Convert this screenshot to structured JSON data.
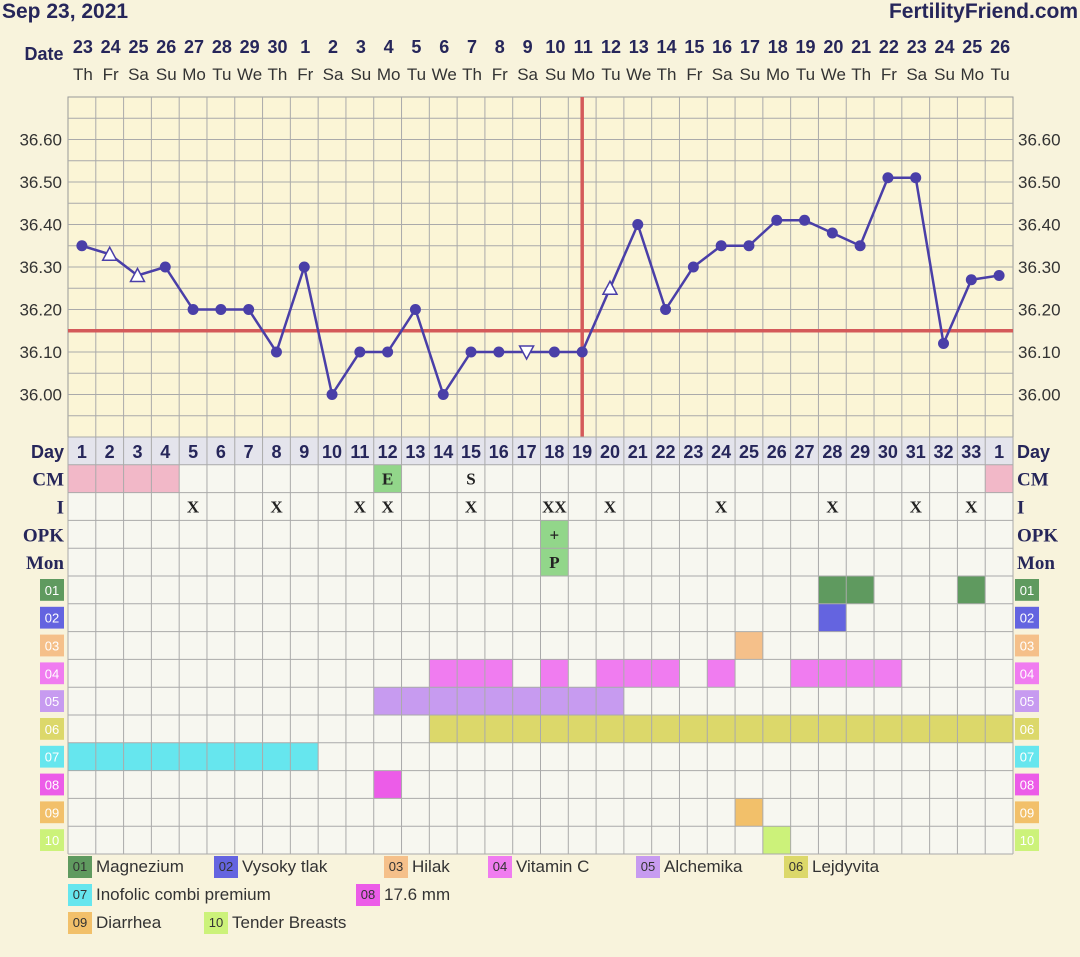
{
  "header": {
    "date": "Sep 23, 2021",
    "site": "FertilityFriend.com"
  },
  "labels": {
    "date": "Date",
    "day": "Day",
    "cm": "CM",
    "i": "I",
    "opk": "OPK",
    "mon": "Mon"
  },
  "colors": {
    "background": "#f8f3dc",
    "temp_line": "#4a3fa8",
    "coverline": "#d45a5a",
    "cm_pink": "#f2b8c8",
    "marker_green": "#92d68a"
  },
  "chart_data": {
    "type": "line",
    "title": "",
    "ylabel": "",
    "ylim": [
      35.9,
      36.7
    ],
    "yticks": [
      "36.60",
      "36.50",
      "36.40",
      "36.30",
      "36.20",
      "36.10",
      "36.00"
    ],
    "coverline": 36.15,
    "ovulation_day": 19,
    "dates": [
      "23",
      "24",
      "25",
      "26",
      "27",
      "28",
      "29",
      "30",
      "1",
      "2",
      "3",
      "4",
      "5",
      "6",
      "7",
      "8",
      "9",
      "10",
      "11",
      "12",
      "13",
      "14",
      "15",
      "16",
      "17",
      "18",
      "19",
      "20",
      "21",
      "22",
      "23",
      "24",
      "25",
      "26"
    ],
    "weekdays": [
      "Th",
      "Fr",
      "Sa",
      "Su",
      "Mo",
      "Tu",
      "We",
      "Th",
      "Fr",
      "Sa",
      "Su",
      "Mo",
      "Tu",
      "We",
      "Th",
      "Fr",
      "Sa",
      "Su",
      "Mo",
      "Tu",
      "We",
      "Th",
      "Fr",
      "Sa",
      "Su",
      "Mo",
      "Tu",
      "We",
      "Th",
      "Fr",
      "Sa",
      "Su",
      "Mo",
      "Tu"
    ],
    "cycle_days": [
      "1",
      "2",
      "3",
      "4",
      "5",
      "6",
      "7",
      "8",
      "9",
      "10",
      "11",
      "12",
      "13",
      "14",
      "15",
      "16",
      "17",
      "18",
      "19",
      "20",
      "21",
      "22",
      "23",
      "24",
      "25",
      "26",
      "27",
      "28",
      "29",
      "30",
      "31",
      "32",
      "33",
      "1"
    ],
    "series": [
      {
        "values": [
          36.35,
          36.33,
          36.28,
          36.3,
          36.2,
          36.2,
          36.2,
          36.1,
          36.3,
          36.0,
          36.1,
          36.1,
          36.2,
          36.0,
          36.1,
          36.1,
          36.1,
          36.1,
          36.1,
          36.25,
          36.4,
          36.2,
          36.3,
          36.35,
          36.35,
          36.41,
          36.41,
          36.38,
          36.35,
          36.51,
          36.51,
          36.12,
          36.27,
          36.28
        ]
      }
    ],
    "markers": [
      "circle",
      "triangle-up",
      "triangle-up",
      "circle",
      "circle",
      "circle",
      "circle",
      "circle",
      "circle",
      "circle",
      "circle",
      "circle",
      "circle",
      "circle",
      "circle",
      "circle",
      "triangle-down",
      "circle",
      "circle",
      "triangle-up",
      "circle",
      "circle",
      "circle",
      "circle",
      "circle",
      "circle",
      "circle",
      "circle",
      "circle",
      "circle",
      "circle",
      "circle",
      "circle",
      "circle"
    ],
    "rows": {
      "cm": [
        {
          "col": 0,
          "color": "#f2b8c8",
          "text": ""
        },
        {
          "col": 1,
          "color": "#f2b8c8",
          "text": ""
        },
        {
          "col": 2,
          "color": "#f2b8c8",
          "text": ""
        },
        {
          "col": 3,
          "color": "#f2b8c8",
          "text": ""
        },
        {
          "col": 11,
          "color": "#92d68a",
          "text": "E"
        },
        {
          "col": 14,
          "color": "",
          "text": "S"
        },
        {
          "col": 33,
          "color": "#f2b8c8",
          "text": ""
        }
      ],
      "i": [
        {
          "col": 4,
          "text": "X"
        },
        {
          "col": 7,
          "text": "X"
        },
        {
          "col": 10,
          "text": "X"
        },
        {
          "col": 11,
          "text": "X"
        },
        {
          "col": 14,
          "text": "X"
        },
        {
          "col": 17,
          "text": "XX"
        },
        {
          "col": 19,
          "text": "X"
        },
        {
          "col": 23,
          "text": "X"
        },
        {
          "col": 27,
          "text": "X"
        },
        {
          "col": 30,
          "text": "X"
        },
        {
          "col": 32,
          "text": "X"
        }
      ],
      "opk": [
        {
          "col": 17,
          "color": "#92d68a",
          "text": "+"
        }
      ],
      "mon": [
        {
          "col": 17,
          "color": "#92d68a",
          "text": "P"
        }
      ]
    },
    "custom_rows": [
      {
        "code": "01",
        "name": "Magnezium",
        "color": "#5f9a5f",
        "days": [
          27,
          28,
          32
        ]
      },
      {
        "code": "02",
        "name": "Vysoky tlak",
        "color": "#6464e0",
        "days": [
          27
        ]
      },
      {
        "code": "03",
        "name": "Hilak",
        "color": "#f5c08a",
        "days": [
          24
        ]
      },
      {
        "code": "04",
        "name": "Vitamin C",
        "color": "#f07cf0",
        "days": [
          13,
          14,
          15,
          17,
          19,
          20,
          21,
          23,
          26,
          27,
          28,
          29
        ]
      },
      {
        "code": "05",
        "name": "Alchemika",
        "color": "#c79bf0",
        "days": [
          11,
          12,
          13,
          14,
          15,
          16,
          17,
          18,
          19
        ]
      },
      {
        "code": "06",
        "name": "Lejdyvita",
        "color": "#dcd86a",
        "days": [
          13,
          14,
          15,
          16,
          17,
          18,
          19,
          20,
          21,
          22,
          23,
          24,
          25,
          26,
          27,
          28,
          29,
          30,
          31,
          32,
          33
        ]
      },
      {
        "code": "07",
        "name": "Inofolic combi premium",
        "color": "#66e6ee",
        "days": [
          0,
          1,
          2,
          3,
          4,
          5,
          6,
          7,
          8
        ]
      },
      {
        "code": "08",
        "name": "17.6 mm",
        "color": "#ec5ce8",
        "days": [
          11
        ]
      },
      {
        "code": "09",
        "name": "Diarrhea",
        "color": "#f2c06a",
        "days": [
          24
        ]
      },
      {
        "code": "10",
        "name": "Tender Breasts",
        "color": "#ccf27a",
        "days": [
          25
        ]
      }
    ]
  }
}
